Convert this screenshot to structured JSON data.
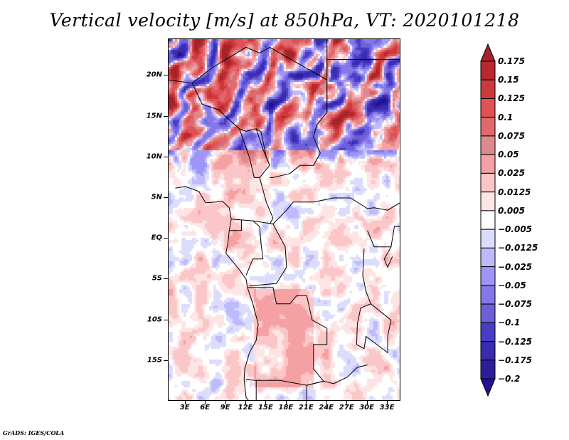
{
  "title": "Vertical velocity [m/s] at 850hPa, VT: 2020101218",
  "credit": "GrADS: IGES/COLA",
  "chart_data": {
    "type": "heatmap",
    "title": "Vertical velocity [m/s] at 850hPa, VT: 2020101218",
    "variable": "Vertical velocity",
    "units": "m/s",
    "level": "850hPa",
    "valid_time": "2020101218",
    "xlabel": "",
    "ylabel": "",
    "x_range_deg_east": [
      0.5,
      35
    ],
    "y_range_deg_lat": [
      -20,
      24.5
    ],
    "x_ticks": [
      "3E",
      "6E",
      "9E",
      "12E",
      "15E",
      "18E",
      "21E",
      "24E",
      "27E",
      "30E",
      "33E"
    ],
    "x_tick_values": [
      3,
      6,
      9,
      12,
      15,
      18,
      21,
      24,
      27,
      30,
      33
    ],
    "y_ticks": [
      "20N",
      "15N",
      "10N",
      "5N",
      "EQ",
      "5S",
      "10S",
      "15S"
    ],
    "y_tick_values": [
      20,
      15,
      10,
      5,
      0,
      -5,
      -10,
      -15
    ],
    "colorbar": {
      "labels": [
        "0.175",
        "0.15",
        "0.125",
        "0.1",
        "0.075",
        "0.05",
        "0.025",
        "0.0125",
        "0.005",
        "−0.005",
        "−0.0125",
        "−0.025",
        "−0.05",
        "−0.075",
        "−0.1",
        "−0.125",
        "−0.175",
        "−0.2"
      ],
      "levels": [
        0.175,
        0.15,
        0.125,
        0.1,
        0.075,
        0.05,
        0.025,
        0.0125,
        0.005,
        -0.005,
        -0.0125,
        -0.025,
        -0.05,
        -0.075,
        -0.1,
        -0.125,
        -0.175,
        -0.2
      ],
      "colors": [
        "#a3242a",
        "#b8292f",
        "#cc3a3e",
        "#e05054",
        "#e0696d",
        "#de8a8c",
        "#f5a0a2",
        "#fbc6c7",
        "#fde4e5",
        "#ffffff",
        "#dcdcfc",
        "#bebafc",
        "#9f95f8",
        "#8577e8",
        "#6c5fd8",
        "#4a3cc4",
        "#3a2bb0",
        "#2c1f9a",
        "#22109a"
      ],
      "extend": "both"
    },
    "features": [
      "country borders",
      "coastlines",
      "lakes"
    ],
    "pattern_notes": "Strong alternating red/blue streaks over Sahara (north of 12N); weak mixed pale values over Gulf of Guinea/Atlantic; moderate red over Angola highlands"
  }
}
